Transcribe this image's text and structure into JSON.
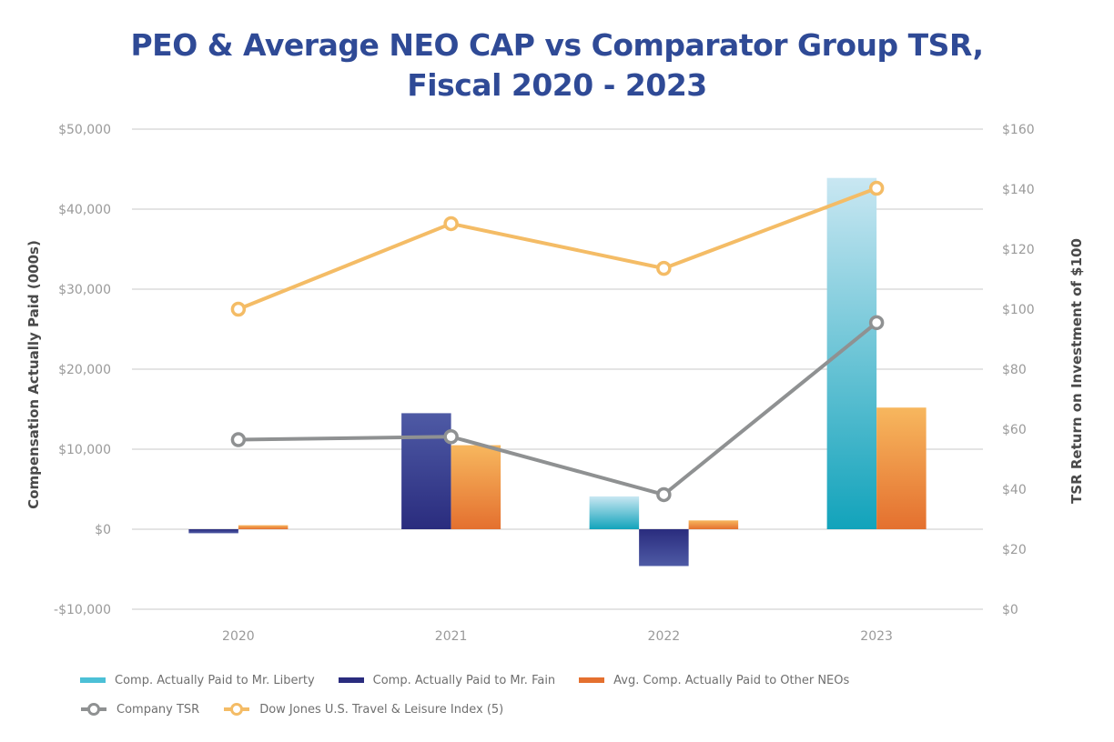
{
  "chart_data": {
    "type": "bar+line",
    "title_line1": "PEO & Average NEO CAP vs Comparator Group TSR,",
    "title_line2": "Fiscal 2020 - 2023",
    "categories": [
      "2020",
      "2021",
      "2022",
      "2023"
    ],
    "ylabel": "Compensation Actually Paid (000s)",
    "y2label": "TSR Return on Investment of $100",
    "ylim": [
      -10000,
      50000
    ],
    "y_ticks": [
      -10000,
      0,
      10000,
      20000,
      30000,
      40000,
      50000
    ],
    "y_tick_labels": [
      "-$10,000",
      "$0",
      "$10,000",
      "$20,000",
      "$30,000",
      "$40,000",
      "$50,000"
    ],
    "y2lim": [
      0,
      160
    ],
    "y2_ticks": [
      0,
      20,
      40,
      60,
      80,
      100,
      120,
      140,
      160
    ],
    "y2_tick_labels": [
      "$0",
      "$20",
      "$40",
      "$60",
      "$80",
      "$100",
      "$120",
      "$140",
      "$160"
    ],
    "grid": true,
    "legend_position": "bottom-left",
    "bar_series": [
      {
        "name": "Comp. Actually Paid to Mr. Liberty",
        "key": "liberty",
        "color_top": "#c9e7f2",
        "color_bottom": "#12a3bb",
        "legend_color": "#4cc0d6",
        "values": [
          null,
          null,
          4100,
          43900
        ]
      },
      {
        "name": "Comp. Actually Paid to Mr. Fain",
        "key": "fain",
        "color_top": "#4e5aa5",
        "color_bottom": "#2a2c7e",
        "legend_color": "#2a2c7e",
        "values": [
          -500,
          14500,
          -4600,
          null
        ]
      },
      {
        "name": "Avg. Comp. Actually Paid to Other NEOs",
        "key": "other-neos",
        "color_top": "#f7b75e",
        "color_bottom": "#e4702f",
        "legend_color": "#e4702f",
        "values": [
          500,
          10500,
          1100,
          15200
        ]
      }
    ],
    "line_series": [
      {
        "name": "Company TSR",
        "key": "company-tsr",
        "color": "#8f9192",
        "axis": "right",
        "values": [
          56.5,
          57.5,
          38.2,
          95.5
        ]
      },
      {
        "name": "Dow Jones U.S. Travel & Leisure Index (5)",
        "key": "dow-jones",
        "color": "#f4bc66",
        "axis": "right",
        "values": [
          100.0,
          128.5,
          113.6,
          140.3
        ]
      }
    ]
  }
}
